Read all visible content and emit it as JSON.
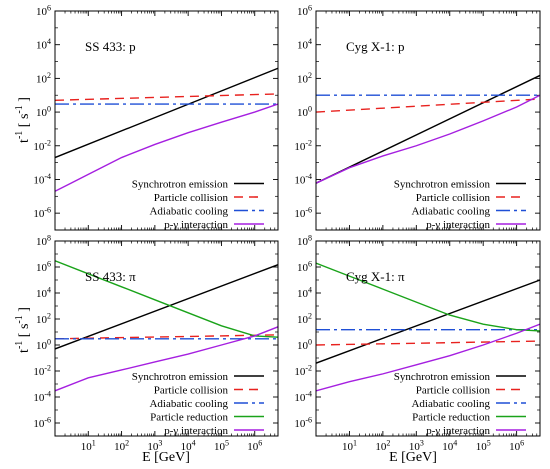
{
  "figure": {
    "ylabel": "t",
    "ylabel_sup": "-1",
    "ylabel_unit": "[ s",
    "ylabel_unit_sup": "-1",
    "ylabel_unit_end": "]",
    "xlabel": "E  [GeV]"
  },
  "series_styles": {
    "Synchrotron emission": {
      "color": "#000000",
      "dash": ""
    },
    "Particle collision": {
      "color": "#e8221f",
      "dash": "9 6"
    },
    "Adiabatic cooling": {
      "color": "#1f4fd6",
      "dash": "14 4 3 4"
    },
    "Particle reduction": {
      "color": "#1aa31a",
      "dash": ""
    },
    "p-γ interaction": {
      "color": "#a51fe0",
      "dash": ""
    }
  },
  "chart_data": [
    {
      "type": "line",
      "title": "SS 433: p",
      "x_scale": "log",
      "y_scale": "log",
      "xlim": [
        1,
        5000000
      ],
      "ylim": [
        1e-07,
        1000000.0
      ],
      "x_ticks": [
        {
          "v": 10,
          "m": "1"
        },
        {
          "v": 100,
          "m": "2"
        },
        {
          "v": 1000,
          "m": "3"
        },
        {
          "v": 10000,
          "m": "4"
        },
        {
          "v": 100000,
          "m": "5"
        },
        {
          "v": 1000000,
          "m": "6"
        }
      ],
      "y_ticks": [
        {
          "v": 1e-06,
          "m": "-6"
        },
        {
          "v": 0.0001,
          "m": "-4"
        },
        {
          "v": 0.01,
          "m": "-2"
        },
        {
          "v": 1,
          "m": "0"
        },
        {
          "v": 100,
          "m": "2"
        },
        {
          "v": 10000,
          "m": "4"
        },
        {
          "v": 1000000,
          "m": "6"
        }
      ],
      "show_x_tick_labels": false,
      "legend_position": "bottom-right",
      "series": [
        {
          "name": "Synchrotron emission",
          "x": [
            1,
            5000000
          ],
          "y": [
            0.002,
            400
          ]
        },
        {
          "name": "Particle collision",
          "x": [
            1,
            5000000
          ],
          "y": [
            5,
            12
          ]
        },
        {
          "name": "Adiabatic cooling",
          "x": [
            1,
            5000000
          ],
          "y": [
            3,
            3
          ]
        },
        {
          "name": "p-γ interaction",
          "x": [
            1,
            3,
            10,
            100,
            1000,
            10000,
            100000,
            1000000,
            5000000
          ],
          "y": [
            2e-05,
            6e-05,
            0.0002,
            0.002,
            0.012,
            0.06,
            0.25,
            1.0,
            3.0
          ]
        }
      ]
    },
    {
      "type": "line",
      "title": "Cyg X-1: p",
      "x_scale": "log",
      "y_scale": "log",
      "xlim": [
        1,
        5000000
      ],
      "ylim": [
        1e-07,
        1000000.0
      ],
      "x_ticks": [
        {
          "v": 10,
          "m": "1"
        },
        {
          "v": 100,
          "m": "2"
        },
        {
          "v": 1000,
          "m": "3"
        },
        {
          "v": 10000,
          "m": "4"
        },
        {
          "v": 100000,
          "m": "5"
        },
        {
          "v": 1000000,
          "m": "6"
        }
      ],
      "y_ticks": [
        {
          "v": 1e-06,
          "m": "-6"
        },
        {
          "v": 0.0001,
          "m": "-4"
        },
        {
          "v": 0.01,
          "m": "-2"
        },
        {
          "v": 1,
          "m": "0"
        },
        {
          "v": 100,
          "m": "2"
        },
        {
          "v": 10000,
          "m": "4"
        },
        {
          "v": 1000000,
          "m": "6"
        }
      ],
      "show_x_tick_labels": false,
      "legend_position": "bottom-right",
      "series": [
        {
          "name": "Synchrotron emission",
          "x": [
            1,
            5000000
          ],
          "y": [
            6e-05,
            150
          ]
        },
        {
          "name": "Particle collision",
          "x": [
            1,
            5000000
          ],
          "y": [
            1,
            6
          ]
        },
        {
          "name": "Adiabatic cooling",
          "x": [
            1,
            5000000
          ],
          "y": [
            10,
            10
          ]
        },
        {
          "name": "p-γ interaction",
          "x": [
            1,
            10,
            100,
            1000,
            10000,
            100000,
            1000000,
            5000000
          ],
          "y": [
            6e-05,
            0.0005,
            0.0025,
            0.01,
            0.05,
            0.3,
            2,
            10
          ]
        }
      ]
    },
    {
      "type": "line",
      "title": "SS 433: π",
      "x_scale": "log",
      "y_scale": "log",
      "xlim": [
        1,
        5000000
      ],
      "ylim": [
        1e-07,
        100000000.0
      ],
      "x_ticks": [
        {
          "v": 10,
          "m": "1"
        },
        {
          "v": 100,
          "m": "2"
        },
        {
          "v": 1000,
          "m": "3"
        },
        {
          "v": 10000,
          "m": "4"
        },
        {
          "v": 100000,
          "m": "5"
        },
        {
          "v": 1000000,
          "m": "6"
        }
      ],
      "y_ticks": [
        {
          "v": 1e-06,
          "m": "-6"
        },
        {
          "v": 0.0001,
          "m": "-4"
        },
        {
          "v": 0.01,
          "m": "-2"
        },
        {
          "v": 1,
          "m": "0"
        },
        {
          "v": 100,
          "m": "2"
        },
        {
          "v": 10000,
          "m": "4"
        },
        {
          "v": 1000000,
          "m": "6"
        },
        {
          "v": 100000000,
          "m": "8"
        }
      ],
      "show_x_tick_labels": true,
      "legend_position": "bottom-right",
      "series": [
        {
          "name": "Synchrotron emission",
          "x": [
            1,
            5000000
          ],
          "y": [
            0.5,
            1500000
          ]
        },
        {
          "name": "Particle collision",
          "x": [
            1,
            5000000
          ],
          "y": [
            3,
            6
          ]
        },
        {
          "name": "Adiabatic cooling",
          "x": [
            1,
            5000000
          ],
          "y": [
            3,
            3
          ]
        },
        {
          "name": "Particle reduction",
          "x": [
            1,
            10,
            100,
            1000,
            10000,
            100000,
            1000000,
            5000000
          ],
          "y": [
            3000000,
            300000,
            30000,
            3000,
            300,
            30,
            5,
            4
          ]
        },
        {
          "name": "p-γ interaction",
          "x": [
            1,
            10,
            100,
            1000,
            10000,
            100000,
            1000000,
            5000000
          ],
          "y": [
            0.0003,
            0.003,
            0.012,
            0.05,
            0.2,
            1,
            5,
            25
          ]
        }
      ]
    },
    {
      "type": "line",
      "title": "Cyg X-1: π",
      "x_scale": "log",
      "y_scale": "log",
      "xlim": [
        1,
        5000000
      ],
      "ylim": [
        1e-07,
        100000000.0
      ],
      "x_ticks": [
        {
          "v": 10,
          "m": "1"
        },
        {
          "v": 100,
          "m": "2"
        },
        {
          "v": 1000,
          "m": "3"
        },
        {
          "v": 10000,
          "m": "4"
        },
        {
          "v": 100000,
          "m": "5"
        },
        {
          "v": 1000000,
          "m": "6"
        }
      ],
      "y_ticks": [
        {
          "v": 1e-06,
          "m": "-6"
        },
        {
          "v": 0.0001,
          "m": "-4"
        },
        {
          "v": 0.01,
          "m": "-2"
        },
        {
          "v": 1,
          "m": "0"
        },
        {
          "v": 100,
          "m": "2"
        },
        {
          "v": 10000,
          "m": "4"
        },
        {
          "v": 1000000,
          "m": "6"
        },
        {
          "v": 100000000,
          "m": "8"
        }
      ],
      "show_x_tick_labels": true,
      "legend_position": "bottom-right",
      "series": [
        {
          "name": "Synchrotron emission",
          "x": [
            1,
            5000000
          ],
          "y": [
            0.04,
            100000
          ]
        },
        {
          "name": "Particle collision",
          "x": [
            1,
            5000000
          ],
          "y": [
            1,
            2
          ]
        },
        {
          "name": "Adiabatic cooling",
          "x": [
            1,
            5000000
          ],
          "y": [
            15,
            15
          ]
        },
        {
          "name": "Particle reduction",
          "x": [
            1,
            10,
            100,
            1000,
            10000,
            100000,
            1000000,
            5000000
          ],
          "y": [
            2000000,
            200000,
            20000,
            2000,
            200,
            40,
            15,
            12
          ]
        },
        {
          "name": "p-γ interaction",
          "x": [
            1,
            10,
            100,
            1000,
            10000,
            100000,
            1000000,
            5000000
          ],
          "y": [
            0.0003,
            0.0015,
            0.006,
            0.03,
            0.15,
            1,
            8,
            40
          ]
        }
      ]
    }
  ]
}
